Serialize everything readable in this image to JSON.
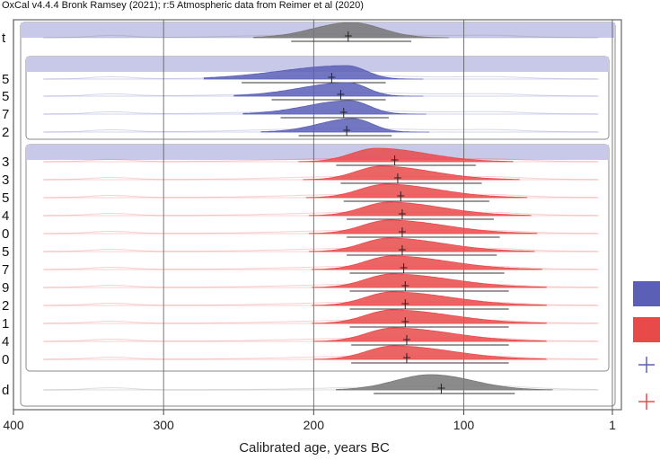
{
  "header": "OxCal v4.4.4 Bronk Ramsey (2021); r:5 Atmospheric data from Reimer et al (2020)",
  "colors": {
    "prior": "#f0f0f0",
    "blue": "#5b5fb6",
    "red": "#e84a4a",
    "grey": "#777777",
    "band": "#c8c9e8"
  },
  "chart_data": {
    "type": "area",
    "xlabel": "Calibrated age, years BC",
    "xticks": [
      400,
      300,
      200,
      100,
      1
    ],
    "xlim": [
      400,
      -5
    ],
    "grid": true,
    "row_labels": [
      "t",
      "5",
      "5",
      "7",
      "2",
      "3",
      "3",
      "5",
      "4",
      "0",
      "5",
      "7",
      "9",
      "2",
      "1",
      "4",
      "0",
      "d"
    ],
    "series": [
      {
        "group": "boundary-start",
        "color": "grey",
        "peak": 175,
        "mean": 177,
        "range": [
          215,
          135
        ]
      },
      {
        "group": "blue",
        "color": "blue",
        "peak": 178,
        "mean": 188,
        "range": [
          248,
          152
        ]
      },
      {
        "group": "blue",
        "color": "blue",
        "peak": 177,
        "mean": 182,
        "range": [
          228,
          152
        ]
      },
      {
        "group": "blue",
        "color": "blue",
        "peak": 176,
        "mean": 180,
        "range": [
          222,
          150
        ]
      },
      {
        "group": "blue",
        "color": "blue",
        "peak": 174,
        "mean": 178,
        "range": [
          210,
          148
        ]
      },
      {
        "group": "red",
        "color": "red",
        "peak": 158,
        "mean": 146,
        "range": [
          185,
          92
        ]
      },
      {
        "group": "red",
        "color": "red",
        "peak": 155,
        "mean": 144,
        "range": [
          182,
          88
        ]
      },
      {
        "group": "red",
        "color": "red",
        "peak": 152,
        "mean": 142,
        "range": [
          180,
          83
        ]
      },
      {
        "group": "red",
        "color": "red",
        "peak": 150,
        "mean": 141,
        "range": [
          178,
          80
        ]
      },
      {
        "group": "red",
        "color": "red",
        "peak": 150,
        "mean": 141,
        "range": [
          178,
          76
        ]
      },
      {
        "group": "red",
        "color": "red",
        "peak": 150,
        "mean": 141,
        "range": [
          178,
          78
        ]
      },
      {
        "group": "red",
        "color": "red",
        "peak": 148,
        "mean": 140,
        "range": [
          176,
          73
        ]
      },
      {
        "group": "red",
        "color": "red",
        "peak": 148,
        "mean": 139,
        "range": [
          176,
          70
        ]
      },
      {
        "group": "red",
        "color": "red",
        "peak": 148,
        "mean": 139,
        "range": [
          176,
          70
        ]
      },
      {
        "group": "red",
        "color": "red",
        "peak": 148,
        "mean": 139,
        "range": [
          176,
          70
        ]
      },
      {
        "group": "red",
        "color": "red",
        "peak": 147,
        "mean": 138,
        "range": [
          175,
          70
        ]
      },
      {
        "group": "red",
        "color": "red",
        "peak": 147,
        "mean": 138,
        "range": [
          175,
          70
        ]
      },
      {
        "group": "boundary-end",
        "color": "grey",
        "peak": 122,
        "mean": 115,
        "range": [
          160,
          66
        ]
      }
    ]
  },
  "legend": [
    {
      "kind": "swatch",
      "color": "blue"
    },
    {
      "kind": "swatch",
      "color": "red"
    },
    {
      "kind": "cross",
      "color": "blue"
    },
    {
      "kind": "cross",
      "color": "red"
    }
  ]
}
